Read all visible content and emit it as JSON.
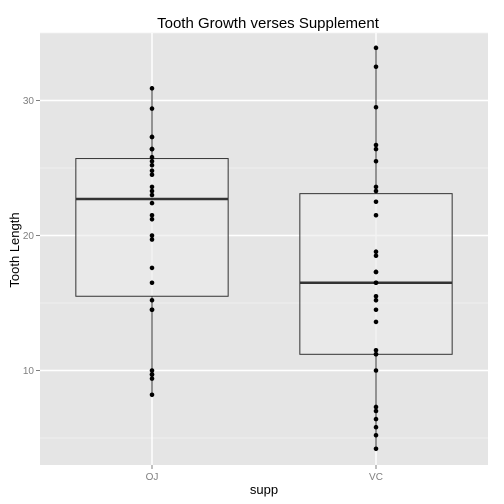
{
  "chart_data": {
    "type": "box",
    "title": "Tooth Growth verses Supplement",
    "xlabel": "supp",
    "ylabel": "Tooth Length",
    "categories": [
      "OJ",
      "VC"
    ],
    "ylim": [
      3.0,
      35.0
    ],
    "yticks": [
      10,
      20,
      30
    ],
    "grid": true,
    "boxes": [
      {
        "category": "OJ",
        "min": 8.2,
        "q1": 15.5,
        "median": 22.7,
        "q3": 25.7,
        "max": 30.9
      },
      {
        "category": "VC",
        "min": 4.2,
        "q1": 11.2,
        "median": 16.5,
        "q3": 23.1,
        "max": 33.9
      }
    ],
    "points": [
      {
        "category": "OJ",
        "values": [
          15.2,
          21.5,
          17.6,
          9.7,
          14.5,
          10.0,
          8.2,
          9.4,
          16.5,
          9.7,
          19.7,
          23.3,
          23.6,
          26.4,
          20.0,
          25.2,
          25.8,
          21.2,
          14.5,
          27.3,
          25.5,
          26.4,
          22.4,
          24.5,
          24.8,
          30.9,
          26.4,
          27.3,
          29.4,
          23.0
        ]
      },
      {
        "category": "VC",
        "values": [
          4.2,
          11.5,
          7.3,
          5.8,
          6.4,
          10.0,
          11.2,
          11.2,
          5.2,
          7.0,
          16.5,
          16.5,
          15.2,
          17.3,
          22.5,
          17.3,
          13.6,
          14.5,
          18.8,
          15.5,
          23.6,
          18.5,
          33.9,
          25.5,
          26.4,
          32.5,
          26.7,
          21.5,
          23.3,
          29.5
        ]
      }
    ]
  }
}
